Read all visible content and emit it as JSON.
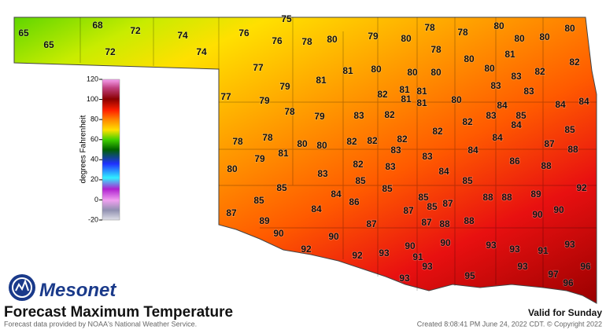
{
  "logo": "Mesonet",
  "title": "Forecast Maximum Temperature",
  "source": "Forecast data provided by NOAA's National Weather Service.",
  "valid": "Valid for Sunday",
  "created": "Created 8:08:41 PM June 24, 2022 CDT. © Copyright 2022",
  "colorbar": {
    "label": "degrees Fahrenheit",
    "range": [
      -20,
      120
    ],
    "ticks": [
      120,
      100,
      80,
      60,
      40,
      20,
      0,
      -20
    ]
  },
  "stations": {
    "values": [
      65,
      65,
      68,
      72,
      72,
      74,
      74,
      75,
      76,
      76,
      78,
      80,
      79,
      80,
      78,
      78,
      80,
      80,
      80,
      80,
      78,
      82,
      81,
      80,
      80,
      83,
      82,
      77,
      81,
      80,
      80,
      80,
      79,
      81,
      77,
      79,
      82,
      81,
      81,
      81,
      81,
      80,
      83,
      83,
      84,
      84,
      84,
      78,
      79,
      83,
      82,
      83,
      85,
      82,
      84,
      85,
      78,
      78,
      80,
      80,
      82,
      82,
      82,
      83,
      82,
      84,
      87,
      88,
      84,
      79,
      81,
      83,
      86,
      88,
      80,
      82,
      83,
      83,
      84,
      85,
      85,
      85,
      84,
      85,
      92,
      85,
      86,
      85,
      87,
      85,
      88,
      88,
      89,
      87,
      84,
      87,
      90,
      90,
      89,
      87,
      87,
      88,
      88,
      90,
      90,
      93,
      90,
      90,
      93,
      93,
      91,
      92,
      92,
      93,
      91,
      96,
      93,
      93,
      93,
      95,
      97,
      96
    ]
  }
}
